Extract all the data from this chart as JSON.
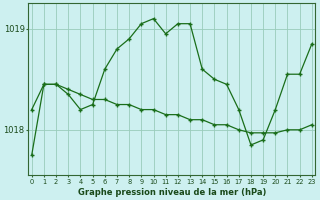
{
  "title": "Graphe pression niveau de la mer (hPa)",
  "background_color": "#cdf0f0",
  "plot_bg_color": "#cdf0f0",
  "grid_color": "#99ccbb",
  "line_color": "#1a6e1a",
  "marker_color": "#1a6e1a",
  "xlim_min": -0.3,
  "xlim_max": 23.3,
  "ylim_min": 1017.55,
  "ylim_max": 1019.25,
  "yticks": [
    1018,
    1019
  ],
  "xticks": [
    0,
    1,
    2,
    3,
    4,
    5,
    6,
    7,
    8,
    9,
    10,
    11,
    12,
    13,
    14,
    15,
    16,
    17,
    18,
    19,
    20,
    21,
    22,
    23
  ],
  "series1_x": [
    0,
    1,
    2,
    3,
    4,
    5,
    6,
    7,
    8,
    9,
    10,
    11,
    12,
    13,
    14,
    15,
    16,
    17,
    18,
    19,
    20,
    21,
    22,
    23
  ],
  "series1_y": [
    1017.75,
    1018.45,
    1018.45,
    1018.35,
    1018.2,
    1018.25,
    1018.6,
    1018.8,
    1018.9,
    1019.05,
    1019.1,
    1018.95,
    1019.05,
    1019.05,
    1018.6,
    1018.5,
    1018.45,
    1018.2,
    1017.85,
    1017.9,
    1018.2,
    1018.55,
    1018.55,
    1018.85
  ],
  "series2_x": [
    0,
    1,
    2,
    3,
    4,
    5,
    6,
    7,
    8,
    9,
    10,
    11,
    12,
    13,
    14,
    15,
    16,
    17,
    18,
    19,
    20,
    21,
    22,
    23
  ],
  "series2_y": [
    1018.2,
    1018.45,
    1018.45,
    1018.4,
    1018.35,
    1018.3,
    1018.3,
    1018.25,
    1018.25,
    1018.2,
    1018.2,
    1018.15,
    1018.15,
    1018.1,
    1018.1,
    1018.05,
    1018.05,
    1018.0,
    1017.97,
    1017.97,
    1017.97,
    1018.0,
    1018.0,
    1018.05
  ]
}
